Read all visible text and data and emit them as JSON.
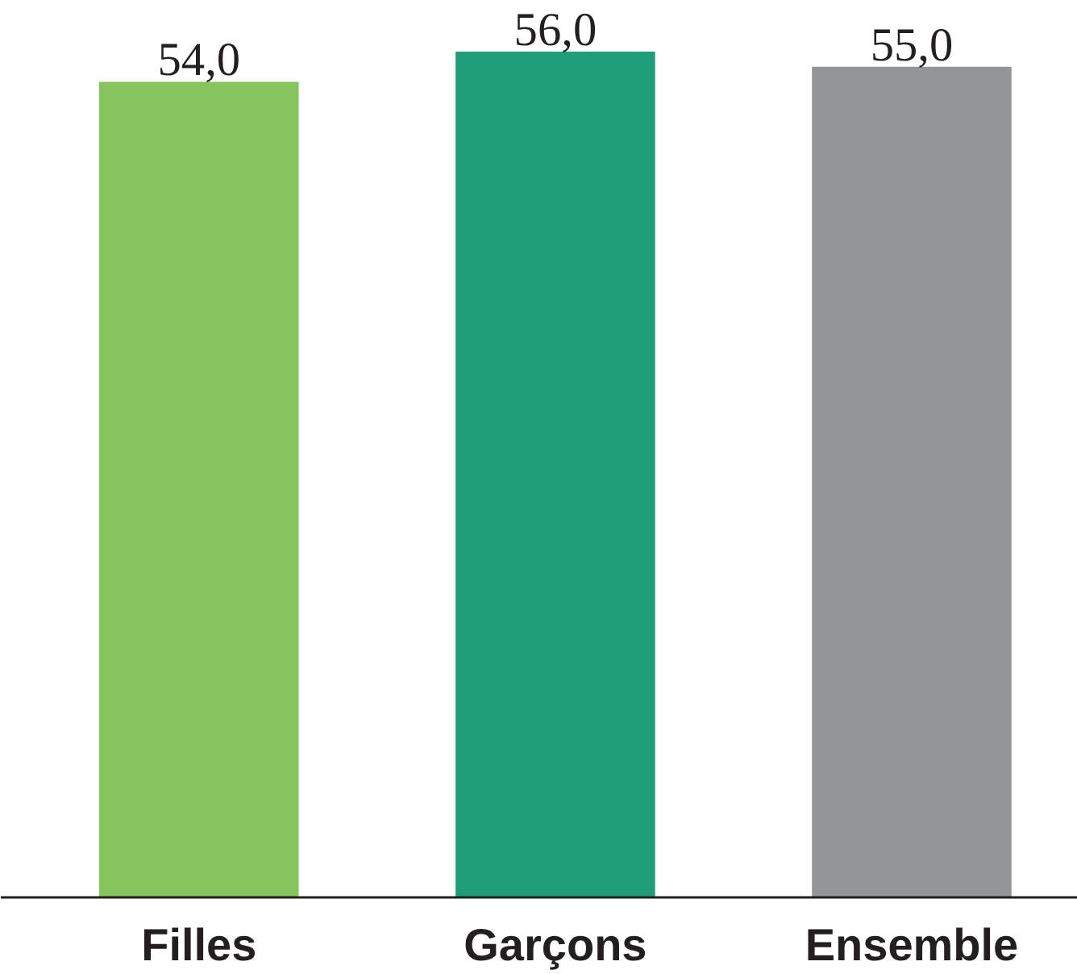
{
  "chart_data": {
    "type": "bar",
    "categories": [
      "Filles",
      "Garçons",
      "Ensemble"
    ],
    "values": [
      54.0,
      56.0,
      55.0
    ],
    "colors": [
      "#84c55d",
      "#1f9c78",
      "#939598"
    ],
    "value_labels": [
      "54,0",
      "56,0",
      "55,0"
    ],
    "tick_labels": "x",
    "grid": false
  }
}
